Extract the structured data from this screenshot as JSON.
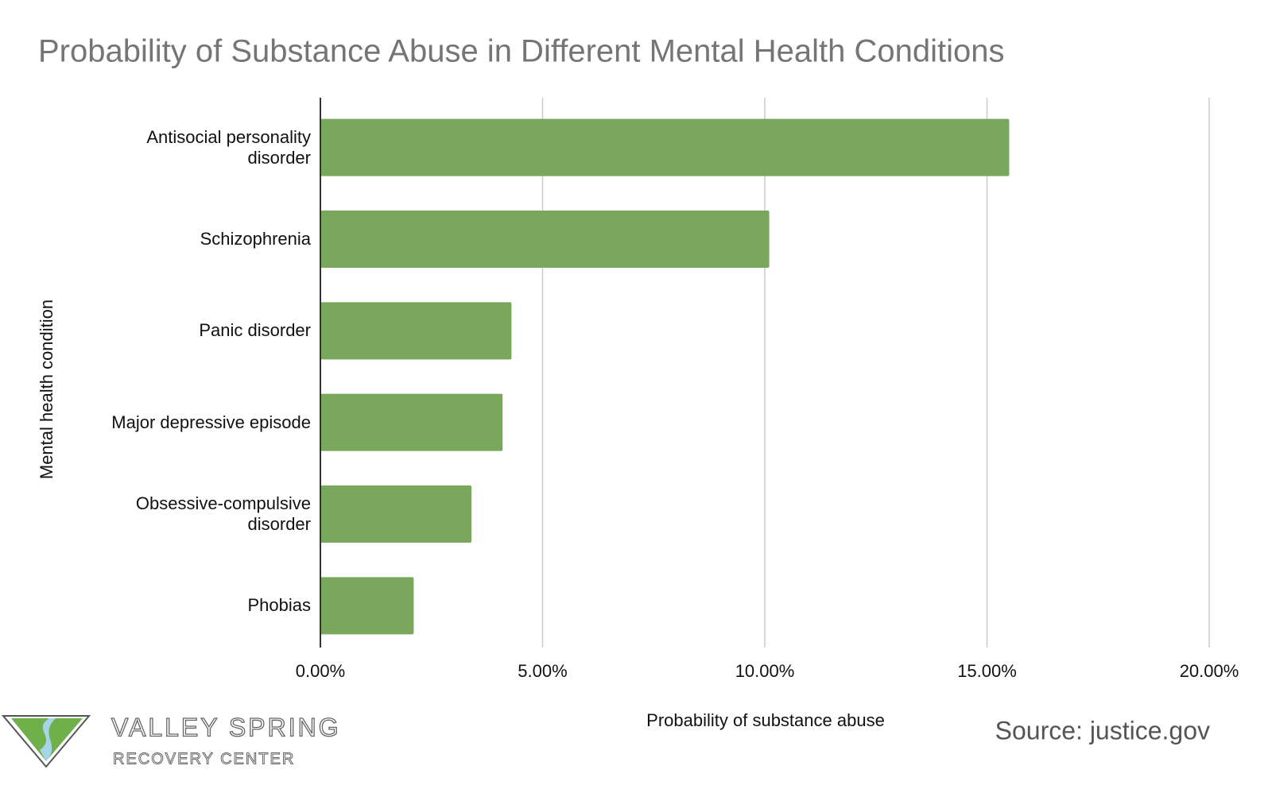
{
  "chart_data": {
    "type": "bar",
    "orientation": "horizontal",
    "title": "Probability of Substance Abuse in Different Mental Health Conditions",
    "x_label": "Probability of substance abuse",
    "y_label": "Mental health condition",
    "categories": [
      "Antisocial personality disorder",
      "Schizophrenia",
      "Panic disorder",
      "Major depressive episode",
      "Obsessive-compulsive disorder",
      "Phobias"
    ],
    "values": [
      15.5,
      10.1,
      4.3,
      4.1,
      3.4,
      2.1
    ],
    "color": "#79a75c",
    "xlim": [
      0,
      20
    ],
    "xticks": [
      {
        "value": 0,
        "label": "0.00%"
      },
      {
        "value": 5,
        "label": "5.00%"
      },
      {
        "value": 10,
        "label": "10.00%"
      },
      {
        "value": 15,
        "label": "15.00%"
      },
      {
        "value": 20,
        "label": "20.00%"
      }
    ],
    "grid": true,
    "source": "Source: justice.gov",
    "logo": {
      "line1": "VALLEY SPRING",
      "line2": "RECOVERY CENTER"
    }
  }
}
